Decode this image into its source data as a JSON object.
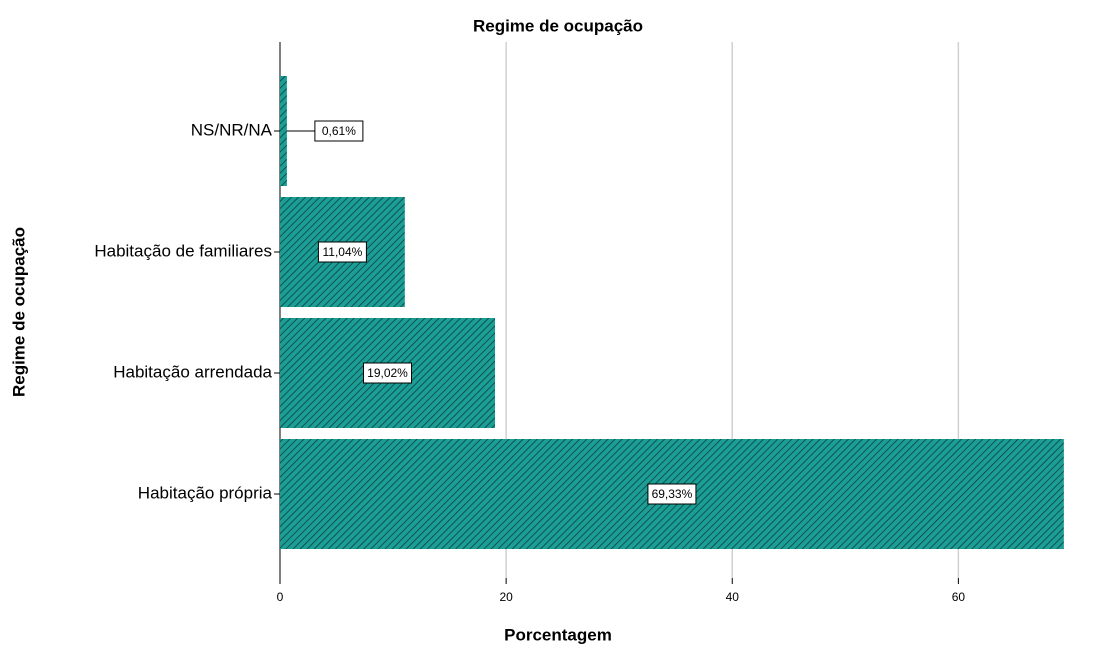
{
  "chart_data": {
    "type": "barh",
    "title": "Regime de ocupação",
    "categories": [
      "NS/NR/NA",
      "Habitação de familiares",
      "Habitação arrendada",
      "Habitação própria"
    ],
    "values": [
      0.61,
      11.04,
      19.02,
      69.33
    ],
    "value_labels": [
      "0,61%",
      "11,04%",
      "19,02%",
      "69,33%"
    ],
    "color": "#1a9e96",
    "xlabel": "Porcentagem",
    "ylabel": "Regime de ocupação",
    "xlim": [
      0,
      71.2
    ],
    "xticks": [
      0,
      20,
      40,
      60
    ],
    "grid": true
  }
}
